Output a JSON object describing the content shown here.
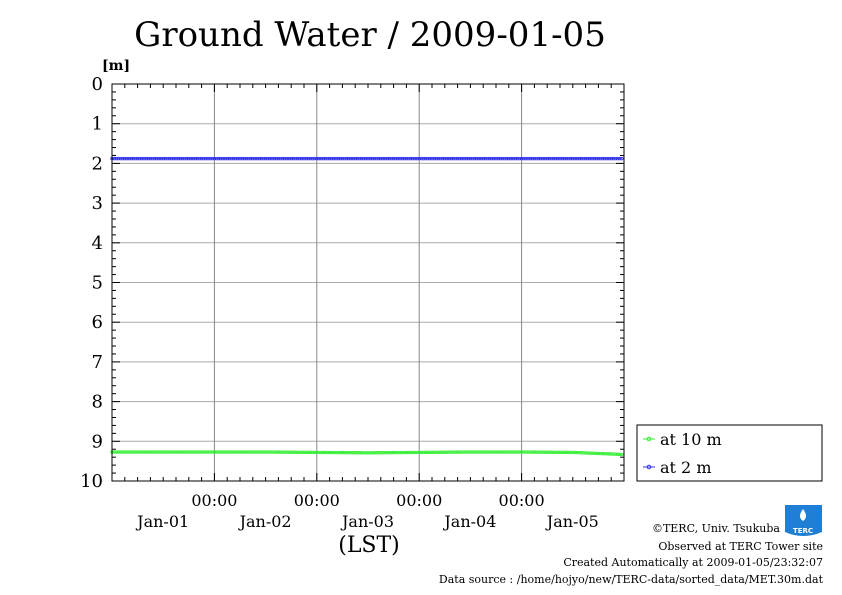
{
  "chart_data": {
    "type": "line",
    "title": "Ground Water / 2009-01-05",
    "ylabel": "[m]",
    "xlabel": "(LST)",
    "yaxis_inverted": true,
    "ylim": [
      0,
      10
    ],
    "yticks": [
      "0",
      "1",
      "2",
      "3",
      "4",
      "5",
      "6",
      "7",
      "8",
      "9",
      "10"
    ],
    "xlim": [
      "2009-01-01T00:00",
      "2009-01-06T00:00"
    ],
    "xtick_times": [
      "00:00",
      "00:00",
      "00:00",
      "00:00"
    ],
    "xtick_dates": [
      "Jan-01",
      "Jan-02",
      "Jan-03",
      "Jan-04",
      "Jan-05"
    ],
    "grid": true,
    "legend_position": "bottom-right, outside plot",
    "series": [
      {
        "name": "at 10 m",
        "color": "#33ee33",
        "marker": "circle",
        "x": [
          "2009-01-01T00:00",
          "2009-01-01T12:00",
          "2009-01-02T00:00",
          "2009-01-02T12:00",
          "2009-01-03T00:00",
          "2009-01-03T12:00",
          "2009-01-04T00:00",
          "2009-01-04T12:00",
          "2009-01-05T00:00",
          "2009-01-05T12:00",
          "2009-01-05T23:30"
        ],
        "y": [
          9.27,
          9.27,
          9.27,
          9.27,
          9.28,
          9.29,
          9.28,
          9.27,
          9.27,
          9.28,
          9.33
        ]
      },
      {
        "name": "at 2 m",
        "color": "#3333ee",
        "marker": "circle",
        "x": [
          "2009-01-01T00:00",
          "2009-01-02T00:00",
          "2009-01-03T00:00",
          "2009-01-04T00:00",
          "2009-01-05T00:00",
          "2009-01-05T23:30"
        ],
        "y": [
          1.88,
          1.88,
          1.88,
          1.88,
          1.88,
          1.88
        ]
      }
    ]
  },
  "credits": {
    "copyright": "©TERC, Univ. Tsukuba",
    "observed": "Observed at TERC Tower site",
    "created": "Created Automatically at 2009-01-05/23:32:07",
    "source": "Data source : /home/hojyo/new/TERC-data/sorted_data/MET.30m.dat",
    "logo_text": "TERC"
  }
}
